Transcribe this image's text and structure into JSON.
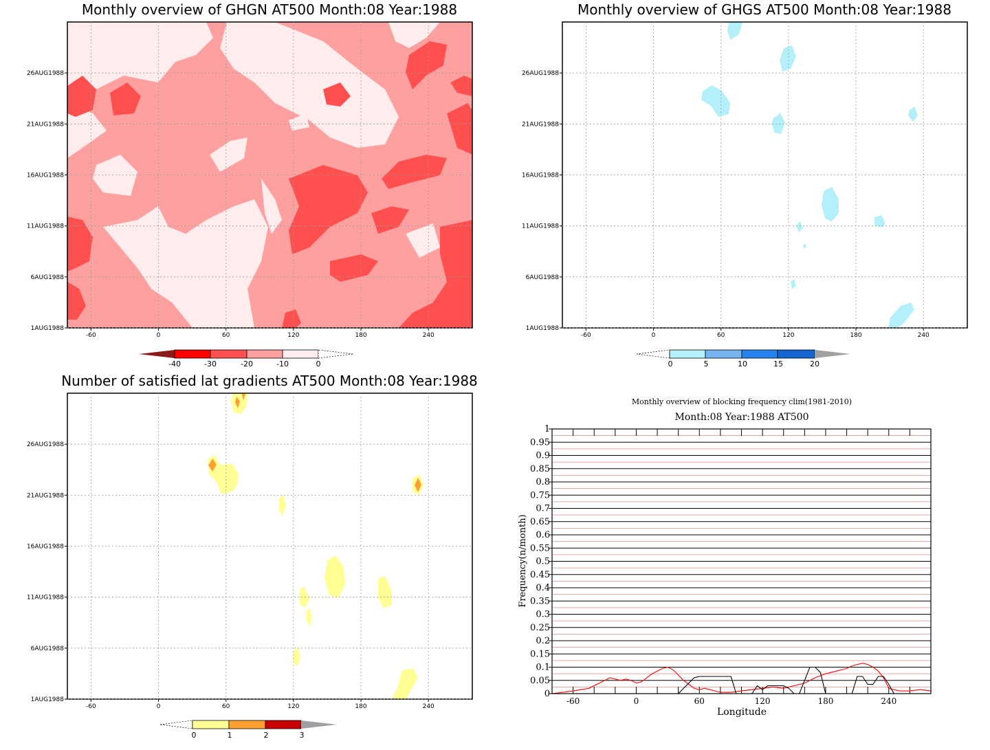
{
  "chart_data": [
    {
      "type": "heatmap",
      "title": "Monthly overview of GHGN AT500 Month:08 Year:1988",
      "x_ticks": [
        "-60",
        "0",
        "60",
        "120",
        "180",
        "240"
      ],
      "y_ticks": [
        "1AUG1988",
        "6AUG1988",
        "11AUG1988",
        "16AUG1988",
        "21AUG1988",
        "26AUG1988"
      ],
      "xlim": [
        -81,
        279
      ],
      "ylim": [
        1,
        31
      ],
      "colorbar": {
        "labels": [
          "-40",
          "-30",
          "-20",
          "-10",
          "0"
        ],
        "colors": [
          "#8b1a1a",
          "#ff0000",
          "#ff5050",
          "#ffa0a0",
          "#ffecec"
        ]
      }
    },
    {
      "type": "heatmap",
      "title": "Monthly overview of GHGS AT500 Month:08 Year:1988",
      "x_ticks": [
        "-60",
        "0",
        "60",
        "120",
        "180",
        "240"
      ],
      "y_ticks": [
        "1AUG1988",
        "6AUG1988",
        "11AUG1988",
        "16AUG1988",
        "21AUG1988",
        "26AUG1988"
      ],
      "xlim": [
        -81,
        279
      ],
      "ylim": [
        1,
        31
      ],
      "colorbar": {
        "labels": [
          "0",
          "5",
          "10",
          "15",
          "20"
        ],
        "colors": [
          "#b4f0fa",
          "#78b4f0",
          "#2882f0",
          "#1464d2",
          "#a0a0a0"
        ]
      }
    },
    {
      "type": "heatmap",
      "title": "Number of satisfied lat gradients AT500 Month:08 Year:1988",
      "x_ticks": [
        "-60",
        "0",
        "60",
        "120",
        "180",
        "240"
      ],
      "y_ticks": [
        "1AUG1988",
        "6AUG1988",
        "11AUG1988",
        "16AUG1988",
        "21AUG1988",
        "26AUG1988"
      ],
      "xlim": [
        -81,
        279
      ],
      "ylim": [
        1,
        31
      ],
      "colorbar": {
        "labels": [
          "0",
          "1",
          "2",
          "3"
        ],
        "colors": [
          "#ffff96",
          "#ffa032",
          "#c80000",
          "#a0a0a0"
        ]
      }
    },
    {
      "type": "line",
      "title": "Monthly overview of blocking frequency clim(1981-2010)",
      "subtitle": "Month:08 Year:1988  AT500",
      "xlabel": "Longitude",
      "ylabel": "Frequency(n/month)",
      "xlim": [
        -80,
        280
      ],
      "ylim": [
        0,
        1
      ],
      "x_ticks": [
        "-60",
        "0",
        "60",
        "120",
        "180",
        "240"
      ],
      "y_ticks": [
        "0",
        "0.05",
        "0.1",
        "0.15",
        "0.2",
        "0.25",
        "0.3",
        "0.35",
        "0.4",
        "0.45",
        "0.5",
        "0.55",
        "0.6",
        "0.65",
        "0.7",
        "0.75",
        "0.8",
        "0.85",
        "0.9",
        "0.95",
        "1"
      ],
      "series": [
        {
          "color": "#ff0000",
          "x": [
            -80,
            -60,
            -45,
            -35,
            -25,
            -15,
            -10,
            -5,
            0,
            5,
            10,
            15,
            20,
            25,
            30,
            35,
            40,
            45,
            50,
            55,
            60,
            65,
            70,
            75,
            80,
            90,
            100,
            110,
            120,
            130,
            140,
            150,
            160,
            170,
            180,
            185,
            190,
            195,
            200,
            205,
            210,
            215,
            220,
            225,
            230,
            235,
            240,
            250,
            260,
            270,
            280
          ],
          "y": [
            0.0,
            0.01,
            0.02,
            0.04,
            0.06,
            0.05,
            0.055,
            0.05,
            0.04,
            0.045,
            0.06,
            0.075,
            0.085,
            0.095,
            0.1,
            0.09,
            0.07,
            0.05,
            0.035,
            0.02,
            0.015,
            0.02,
            0.015,
            0.01,
            0.005,
            0.005,
            0.01,
            0.015,
            0.02,
            0.025,
            0.02,
            0.03,
            0.04,
            0.06,
            0.075,
            0.08,
            0.085,
            0.09,
            0.095,
            0.105,
            0.11,
            0.115,
            0.11,
            0.1,
            0.085,
            0.06,
            0.02,
            0.01,
            0.01,
            0.015,
            0.01
          ]
        },
        {
          "color": "#000000",
          "x": [
            -80,
            40,
            45,
            50,
            55,
            60,
            70,
            75,
            80,
            85,
            90,
            95,
            100,
            105,
            110,
            115,
            120,
            125,
            130,
            135,
            140,
            145,
            150,
            155,
            160,
            165,
            170,
            175,
            180,
            185,
            190,
            195,
            200,
            205,
            210,
            215,
            220,
            225,
            230,
            235,
            240,
            245,
            280
          ],
          "y": [
            0,
            0,
            0.02,
            0.04,
            0.06,
            0.065,
            0.065,
            0.065,
            0.065,
            0.065,
            0.065,
            0.0,
            0.0,
            0.0,
            0.0,
            0.03,
            0.015,
            0.03,
            0.03,
            0.03,
            0.03,
            0.02,
            0.0,
            0.0,
            0.05,
            0.1,
            0.1,
            0.08,
            0.0,
            0.0,
            0.0,
            0.0,
            0.0,
            0.0,
            0.065,
            0.065,
            0.035,
            0.035,
            0.065,
            0.065,
            0.035,
            0.0,
            0
          ]
        }
      ]
    }
  ]
}
